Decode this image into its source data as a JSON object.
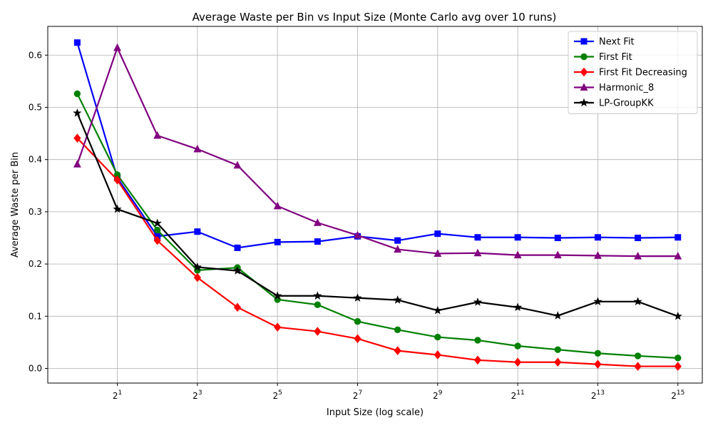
{
  "chart_data": {
    "type": "line",
    "title": "Average Waste per Bin vs Input Size (Monte Carlo avg over 10 runs)",
    "xlabel": "Input Size (log scale)",
    "ylabel": "Average Waste per Bin",
    "x_scale": "log2",
    "x": [
      1,
      2,
      4,
      8,
      16,
      32,
      64,
      128,
      256,
      512,
      1024,
      2048,
      4096,
      8192,
      16384,
      32768
    ],
    "xlim": [
      0.6,
      50000
    ],
    "ylim": [
      -0.028,
      0.655
    ],
    "x_ticks": [
      {
        "value": 2,
        "base": "2",
        "exp": "1"
      },
      {
        "value": 8,
        "base": "2",
        "exp": "3"
      },
      {
        "value": 32,
        "base": "2",
        "exp": "5"
      },
      {
        "value": 128,
        "base": "2",
        "exp": "7"
      },
      {
        "value": 512,
        "base": "2",
        "exp": "9"
      },
      {
        "value": 2048,
        "base": "2",
        "exp": "11"
      },
      {
        "value": 8192,
        "base": "2",
        "exp": "13"
      },
      {
        "value": 32768,
        "base": "2",
        "exp": "15"
      }
    ],
    "y_ticks": [
      {
        "value": 0.0,
        "label": "0.0"
      },
      {
        "value": 0.1,
        "label": "0.1"
      },
      {
        "value": 0.2,
        "label": "0.2"
      },
      {
        "value": 0.3,
        "label": "0.3"
      },
      {
        "value": 0.4,
        "label": "0.4"
      },
      {
        "value": 0.5,
        "label": "0.5"
      },
      {
        "value": 0.6,
        "label": "0.6"
      }
    ],
    "grid": true,
    "legend_position": "top-right",
    "series": [
      {
        "name": "Next Fit",
        "color": "#0000ff",
        "marker": "square",
        "values": [
          0.624,
          0.365,
          0.253,
          0.262,
          0.231,
          0.242,
          0.243,
          0.253,
          0.245,
          0.258,
          0.251,
          0.251,
          0.25,
          0.251,
          0.25,
          0.251
        ]
      },
      {
        "name": "First Fit",
        "color": "#008000",
        "marker": "circle",
        "values": [
          0.526,
          0.371,
          0.265,
          0.188,
          0.193,
          0.132,
          0.122,
          0.09,
          0.074,
          0.06,
          0.054,
          0.043,
          0.036,
          0.029,
          0.024,
          0.02
        ]
      },
      {
        "name": "First Fit Decreasing",
        "color": "#ff0000",
        "marker": "diamond",
        "values": [
          0.441,
          0.361,
          0.245,
          0.174,
          0.117,
          0.079,
          0.071,
          0.057,
          0.034,
          0.026,
          0.016,
          0.012,
          0.012,
          0.008,
          0.004,
          0.004
        ]
      },
      {
        "name": "Harmonic_8",
        "color": "#800080",
        "marker": "triangle",
        "values": [
          0.391,
          0.614,
          0.446,
          0.42,
          0.389,
          0.311,
          0.279,
          0.255,
          0.228,
          0.22,
          0.221,
          0.217,
          0.217,
          0.216,
          0.215,
          0.215
        ]
      },
      {
        "name": "LP-GroupKK",
        "color": "#000000",
        "marker": "star",
        "values": [
          0.489,
          0.305,
          0.278,
          0.194,
          0.187,
          0.139,
          0.139,
          0.135,
          0.131,
          0.111,
          0.127,
          0.117,
          0.101,
          0.128,
          0.128,
          0.1
        ]
      }
    ]
  }
}
